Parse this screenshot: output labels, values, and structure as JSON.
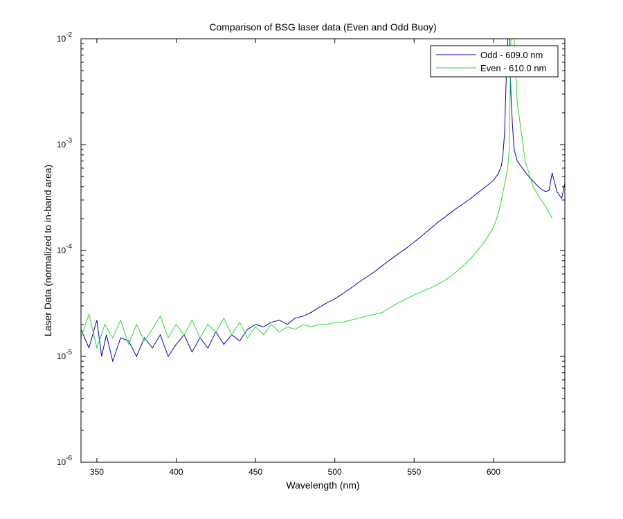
{
  "chart_data": {
    "type": "line",
    "title": "Comparison of BSG laser data (Even and Odd Buoy)",
    "xlabel": "Wavelength (nm)",
    "ylabel": "Laser Data (normalized to in-band area)",
    "xlim": [
      340,
      645
    ],
    "ylim": [
      1e-06,
      0.01
    ],
    "yscale": "log",
    "xticks": [
      350,
      400,
      450,
      500,
      550,
      600
    ],
    "xtick_labels": [
      "350",
      "400",
      "450",
      "500",
      "550",
      "600"
    ],
    "yticks": [
      1e-06,
      1e-05,
      0.0001,
      0.001,
      0.01
    ],
    "ytick_labels": [
      {
        "base": "10",
        "exp": "-6"
      },
      {
        "base": "10",
        "exp": "-5"
      },
      {
        "base": "10",
        "exp": "-4"
      },
      {
        "base": "10",
        "exp": "-3"
      },
      {
        "base": "10",
        "exp": "-2"
      }
    ],
    "grid": false,
    "legend": "top-right",
    "series": [
      {
        "name": "Odd - 609.0 nm",
        "color": "#0000bb",
        "x": [
          340,
          345,
          350,
          353,
          356,
          360,
          365,
          370,
          375,
          380,
          385,
          390,
          395,
          400,
          405,
          410,
          415,
          420,
          425,
          430,
          435,
          440,
          445,
          450,
          455,
          460,
          465,
          470,
          475,
          480,
          485,
          490,
          495,
          500,
          505,
          510,
          515,
          520,
          525,
          530,
          535,
          540,
          545,
          550,
          555,
          560,
          565,
          570,
          575,
          580,
          585,
          590,
          595,
          600,
          603,
          605,
          606,
          607,
          608,
          609,
          610,
          611,
          612,
          613,
          615,
          620,
          625,
          630,
          633,
          635,
          637,
          640,
          643,
          645
        ],
        "y": [
          1.8e-05,
          1.2e-05,
          2.2e-05,
          1e-05,
          1.6e-05,
          9e-06,
          1.5e-05,
          1.4e-05,
          1e-05,
          1.5e-05,
          1.2e-05,
          1.6e-05,
          1e-05,
          1.3e-05,
          1.6e-05,
          1.1e-05,
          1.5e-05,
          1.2e-05,
          1.7e-05,
          1.3e-05,
          1.6e-05,
          1.4e-05,
          1.8e-05,
          2e-05,
          1.9e-05,
          2.1e-05,
          2.2e-05,
          2e-05,
          2.3e-05,
          2.4e-05,
          2.6e-05,
          2.9e-05,
          3.2e-05,
          3.5e-05,
          3.9e-05,
          4.4e-05,
          5e-05,
          5.6e-05,
          6.3e-05,
          7.2e-05,
          8.2e-05,
          9.3e-05,
          0.000105,
          0.00012,
          0.000138,
          0.00016,
          0.000185,
          0.00021,
          0.00024,
          0.00027,
          0.000305,
          0.00035,
          0.0004,
          0.00046,
          0.00053,
          0.00063,
          0.0008,
          0.0013,
          0.004,
          0.01,
          0.01,
          0.003,
          0.0015,
          0.0009,
          0.0007,
          0.00055,
          0.00045,
          0.00038,
          0.00036,
          0.00037,
          0.00054,
          0.00036,
          0.00031,
          0.00043
        ]
      },
      {
        "name": "Even - 610.0 nm",
        "color": "#22dd22",
        "x": [
          340,
          345,
          350,
          355,
          360,
          365,
          370,
          375,
          380,
          385,
          390,
          395,
          400,
          405,
          410,
          415,
          420,
          425,
          430,
          435,
          440,
          445,
          450,
          455,
          460,
          465,
          470,
          475,
          480,
          485,
          490,
          495,
          500,
          505,
          510,
          515,
          520,
          525,
          530,
          535,
          540,
          545,
          550,
          555,
          560,
          565,
          570,
          575,
          580,
          585,
          590,
          595,
          600,
          603,
          605,
          607,
          609,
          610,
          611,
          612,
          613,
          615,
          620,
          625,
          630,
          633,
          635,
          637
        ],
        "y": [
          1.5e-05,
          2.5e-05,
          1.2e-05,
          2e-05,
          1.5e-05,
          2.2e-05,
          1.3e-05,
          2e-05,
          1.4e-05,
          1.8e-05,
          2.4e-05,
          1.5e-05,
          2e-05,
          1.6e-05,
          2.2e-05,
          1.5e-05,
          2e-05,
          1.7e-05,
          2.3e-05,
          1.6e-05,
          2.1e-05,
          1.5e-05,
          1.9e-05,
          1.6e-05,
          2e-05,
          1.7e-05,
          1.9e-05,
          1.8e-05,
          2e-05,
          1.9e-05,
          2e-05,
          2e-05,
          2.1e-05,
          2.1e-05,
          2.2e-05,
          2.3e-05,
          2.4e-05,
          2.5e-05,
          2.6e-05,
          2.9e-05,
          3.2e-05,
          3.5e-05,
          3.8e-05,
          4.1e-05,
          4.4e-05,
          4.8e-05,
          5.3e-05,
          6e-05,
          7e-05,
          8.2e-05,
          0.0001,
          0.000125,
          0.000165,
          0.00022,
          0.0003,
          0.00042,
          0.0006,
          0.00095,
          0.01,
          0.01,
          0.01,
          0.0025,
          0.0007,
          0.0004,
          0.0003,
          0.00026,
          0.00023,
          0.0002
        ]
      }
    ]
  }
}
